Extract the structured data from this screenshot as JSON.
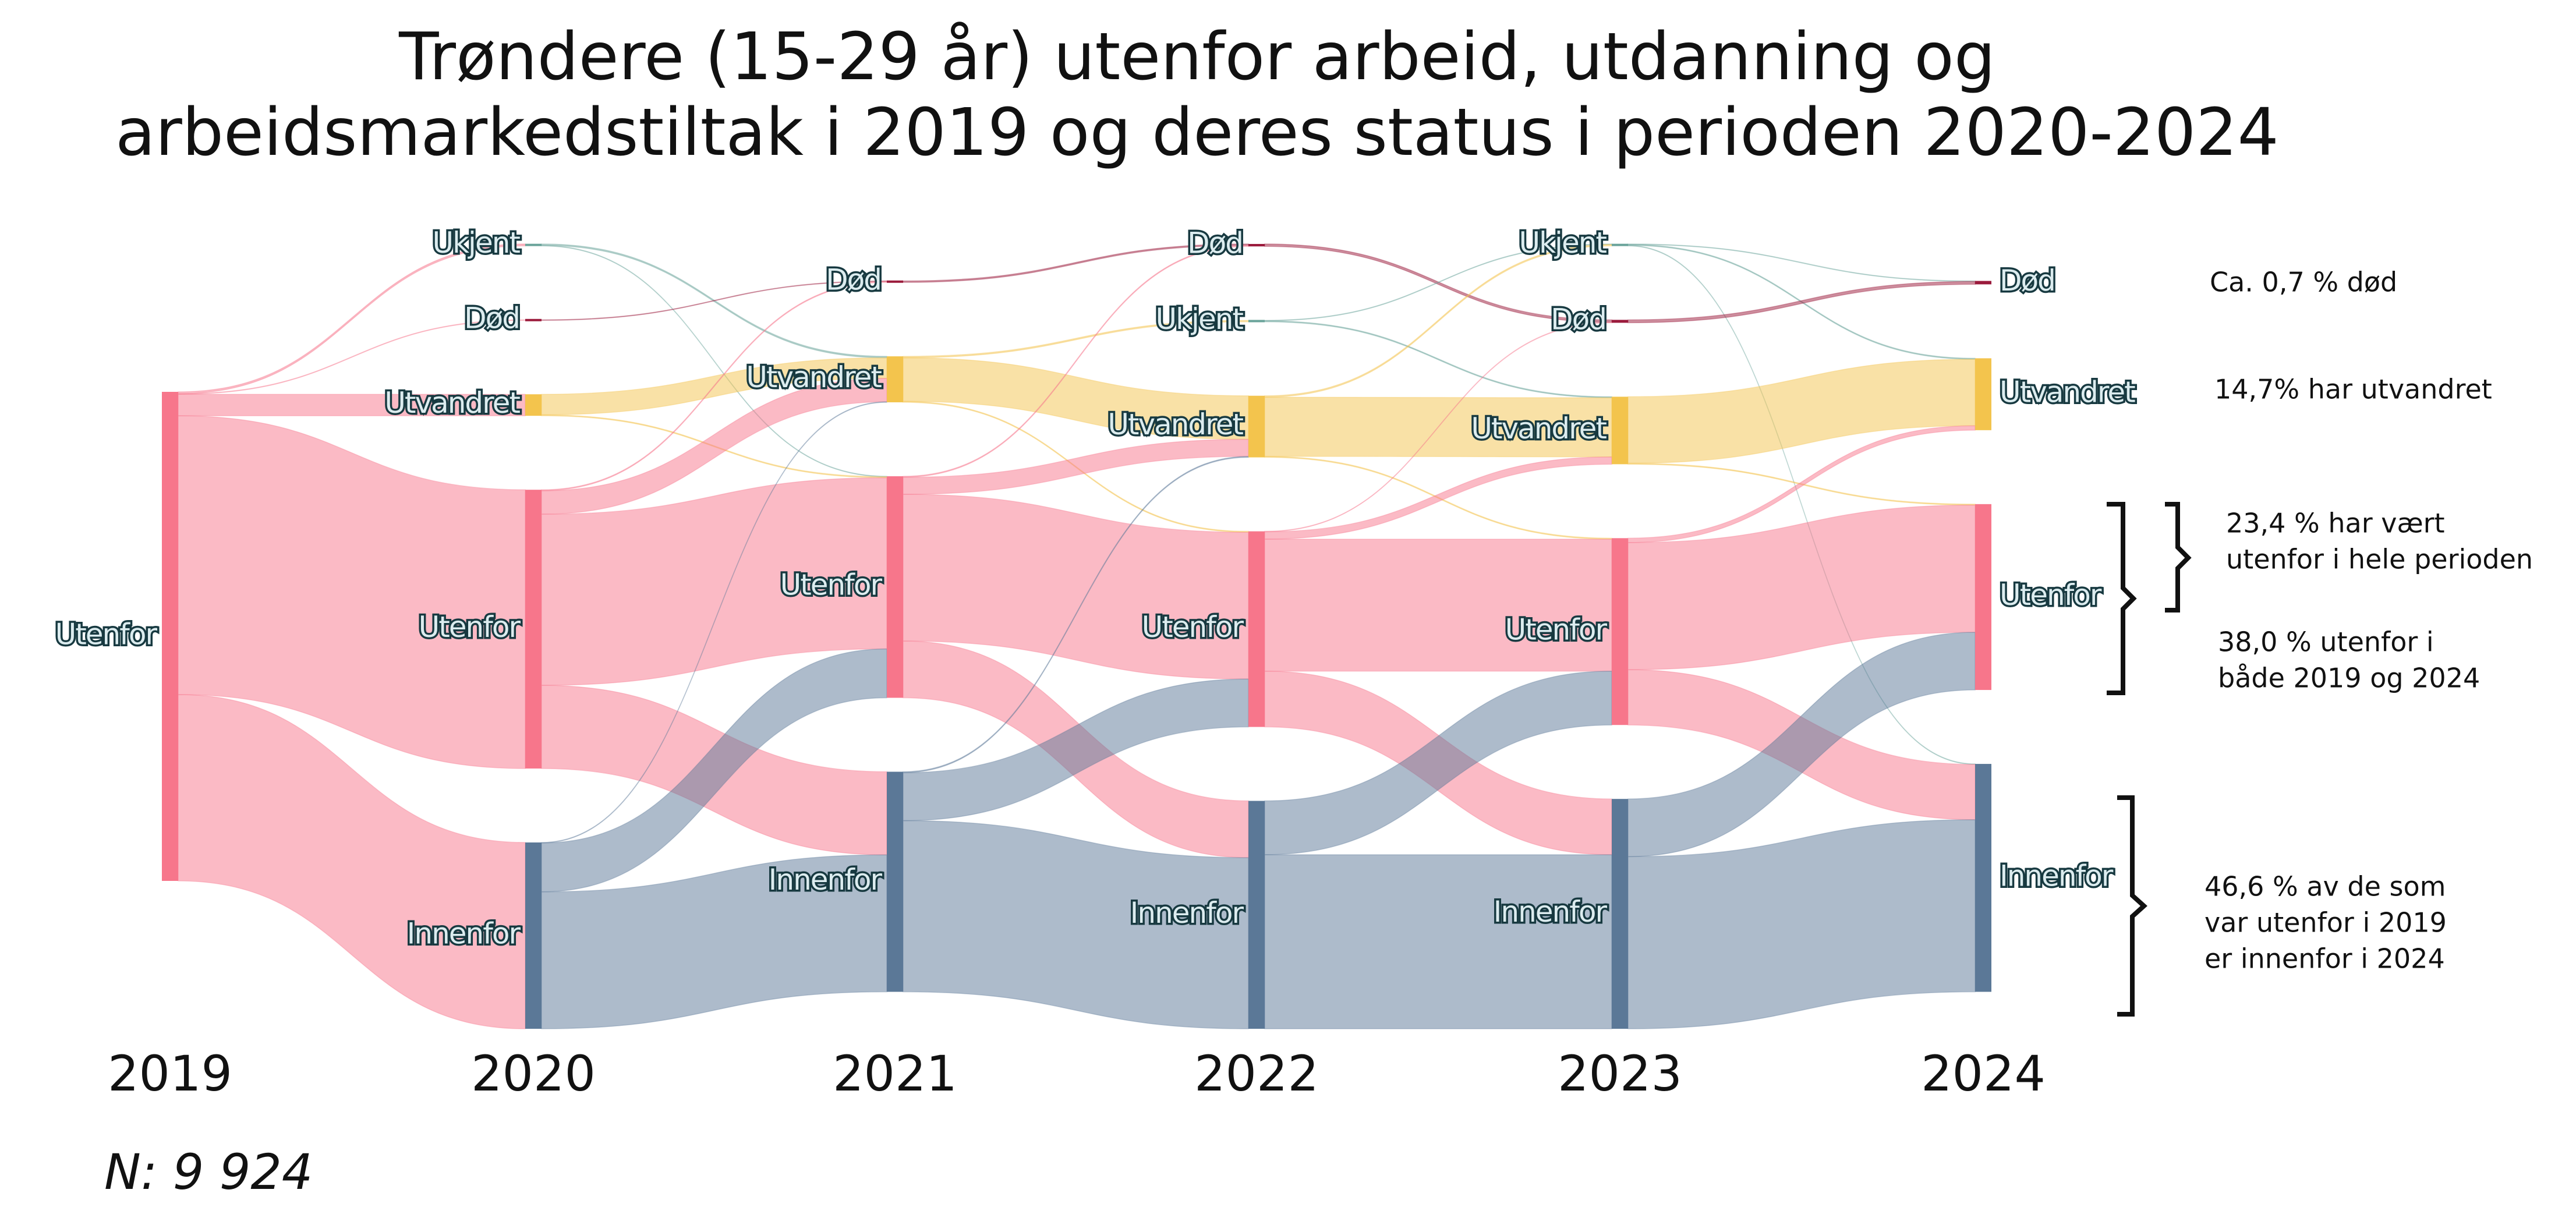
{
  "chart_data": {
    "type": "sankey",
    "title": [
      "Trøndere (15-29 år) utenfor arbeid, utdanning og",
      "arbeidsmarkedstiltak i 2019 og deres status i perioden 2020-2024"
    ],
    "colors": {
      "Utenfor": "#f7768b",
      "Innenfor": "#5b7897",
      "Utvandret": "#f3c44d",
      "Død": "#9b1b3c",
      "Ukjent": "#6aa39a"
    },
    "stages": [
      {
        "label": "2019",
        "nodes": [
          "Utenfor"
        ]
      },
      {
        "label": "2020",
        "nodes": [
          "Ukjent",
          "Død",
          "Utvandret",
          "Utenfor",
          "Innenfor"
        ]
      },
      {
        "label": "2021",
        "nodes": [
          "Død",
          "Utvandret",
          "Utenfor",
          "Innenfor"
        ]
      },
      {
        "label": "2022",
        "nodes": [
          "Død",
          "Ukjent",
          "Utvandret",
          "Utenfor",
          "Innenfor"
        ]
      },
      {
        "label": "2023",
        "nodes": [
          "Ukjent",
          "Død",
          "Utvandret",
          "Utenfor",
          "Innenfor"
        ]
      },
      {
        "label": "2024",
        "nodes": [
          "Død",
          "Utvandret",
          "Utenfor",
          "Innenfor"
        ]
      }
    ],
    "flows": [
      [
        {
          "from": "Utenfor",
          "to": "Ukjent",
          "value": 0.4
        },
        {
          "from": "Utenfor",
          "to": "Død",
          "value": 0.1
        },
        {
          "from": "Utenfor",
          "to": "Utvandret",
          "value": 4.4
        },
        {
          "from": "Utenfor",
          "to": "Utenfor",
          "value": 57
        },
        {
          "from": "Utenfor",
          "to": "Innenfor",
          "value": 38.1
        }
      ],
      [
        {
          "from": "Ukjent",
          "to": "Utvandret",
          "value": 0.3
        },
        {
          "from": "Ukjent",
          "to": "Utenfor",
          "value": 0.1
        },
        {
          "from": "Død",
          "to": "Død",
          "value": 0.1
        },
        {
          "from": "Utvandret",
          "to": "Utvandret",
          "value": 4.2
        },
        {
          "from": "Utvandret",
          "to": "Utenfor",
          "value": 0.2
        },
        {
          "from": "Utenfor",
          "to": "Død",
          "value": 0.2
        },
        {
          "from": "Utenfor",
          "to": "Utvandret",
          "value": 4.8
        },
        {
          "from": "Utenfor",
          "to": "Utenfor",
          "value": 35
        },
        {
          "from": "Utenfor",
          "to": "Innenfor",
          "value": 17
        },
        {
          "from": "Innenfor",
          "to": "Utvandret",
          "value": 0.1
        },
        {
          "from": "Innenfor",
          "to": "Utenfor",
          "value": 10
        },
        {
          "from": "Innenfor",
          "to": "Innenfor",
          "value": 28
        }
      ],
      [
        {
          "from": "Død",
          "to": "Død",
          "value": 0.3
        },
        {
          "from": "Utvandret",
          "to": "Ukjent",
          "value": 0.3
        },
        {
          "from": "Utvandret",
          "to": "Utvandret",
          "value": 8.9
        },
        {
          "from": "Utvandret",
          "to": "Utenfor",
          "value": 0.2
        },
        {
          "from": "Utenfor",
          "to": "Død",
          "value": 0.2
        },
        {
          "from": "Utenfor",
          "to": "Utvandret",
          "value": 3.5
        },
        {
          "from": "Utenfor",
          "to": "Utenfor",
          "value": 30
        },
        {
          "from": "Utenfor",
          "to": "Innenfor",
          "value": 11.6
        },
        {
          "from": "Innenfor",
          "to": "Utvandret",
          "value": 0.2
        },
        {
          "from": "Innenfor",
          "to": "Utenfor",
          "value": 9.8
        },
        {
          "from": "Innenfor",
          "to": "Innenfor",
          "value": 35
        }
      ],
      [
        {
          "from": "Død",
          "to": "Død",
          "value": 0.5
        },
        {
          "from": "Ukjent",
          "to": "Ukjent",
          "value": 0.1
        },
        {
          "from": "Ukjent",
          "to": "Utvandret",
          "value": 0.2
        },
        {
          "from": "Utvandret",
          "to": "Ukjent",
          "value": 0.3
        },
        {
          "from": "Utvandret",
          "to": "Utvandret",
          "value": 12.1
        },
        {
          "from": "Utvandret",
          "to": "Utenfor",
          "value": 0.2
        },
        {
          "from": "Utenfor",
          "to": "Død",
          "value": 0.1
        },
        {
          "from": "Utenfor",
          "to": "Utvandret",
          "value": 1.5
        },
        {
          "from": "Utenfor",
          "to": "Utenfor",
          "value": 27
        },
        {
          "from": "Utenfor",
          "to": "Innenfor",
          "value": 11.4
        },
        {
          "from": "Innenfor",
          "to": "Utenfor",
          "value": 11
        },
        {
          "from": "Innenfor",
          "to": "Innenfor",
          "value": 35.6
        }
      ],
      [
        {
          "from": "Ukjent",
          "to": "Død",
          "value": 0.1
        },
        {
          "from": "Ukjent",
          "to": "Utvandret",
          "value": 0.2
        },
        {
          "from": "Ukjent",
          "to": "Innenfor",
          "value": 0.1
        },
        {
          "from": "Død",
          "to": "Død",
          "value": 0.6
        },
        {
          "from": "Utvandret",
          "to": "Utvandret",
          "value": 13.6
        },
        {
          "from": "Utvandret",
          "to": "Utenfor",
          "value": 0.2
        },
        {
          "from": "Utenfor",
          "to": "Utvandret",
          "value": 0.9
        },
        {
          "from": "Utenfor",
          "to": "Utenfor",
          "value": 26
        },
        {
          "from": "Utenfor",
          "to": "Innenfor",
          "value": 11.3
        },
        {
          "from": "Innenfor",
          "to": "Utenfor",
          "value": 11.8
        },
        {
          "from": "Innenfor",
          "to": "Innenfor",
          "value": 35.2
        }
      ]
    ],
    "annotations": [
      [
        "Ca. 0,7 % død"
      ],
      [
        "14,7% har utvandret"
      ],
      [
        "23,4 % har vært",
        "utenfor i hele perioden"
      ],
      [
        "38,0 % utenfor i",
        "både 2019 og 2024"
      ],
      [
        "46,6 % av de som",
        "var utenfor i 2019",
        "er innenfor i 2024"
      ]
    ],
    "note": "N: 9 924"
  }
}
